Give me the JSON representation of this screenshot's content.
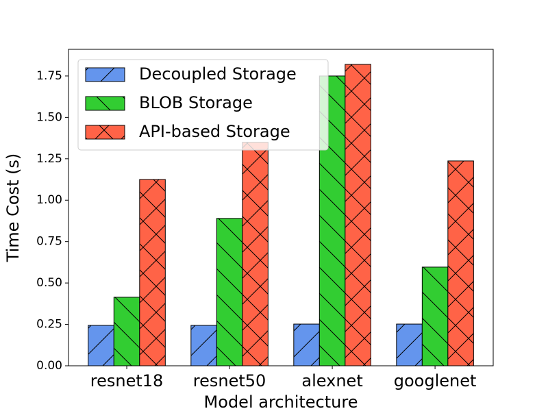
{
  "chart_data": {
    "type": "bar",
    "xlabel": "Model architecture",
    "ylabel": "Time Cost (s)",
    "categories": [
      "resnet18",
      "resnet50",
      "alexnet",
      "googlenet"
    ],
    "series": [
      {
        "name": "Decoupled Storage",
        "color": "#6495ED",
        "hatch": "/",
        "values": [
          0.244,
          0.244,
          0.252,
          0.252
        ]
      },
      {
        "name": "BLOB Storage",
        "color": "#32CD32",
        "hatch": "\\",
        "values": [
          0.414,
          0.89,
          1.75,
          0.596
        ]
      },
      {
        "name": "API-based Storage",
        "color": "#FF6347",
        "hatch": "x",
        "values": [
          1.125,
          1.35,
          1.82,
          1.237
        ]
      }
    ],
    "ylim": [
      0,
      1.911
    ],
    "yticks": [
      {
        "value": 0,
        "label": "0.00"
      },
      {
        "value": 0.25,
        "label": "0.25"
      },
      {
        "value": 0.5,
        "label": "0.50"
      },
      {
        "value": 0.75,
        "label": "0.75"
      },
      {
        "value": 1,
        "label": "1.00"
      },
      {
        "value": 1.25,
        "label": "1.25"
      },
      {
        "value": 1.5,
        "label": "1.50"
      },
      {
        "value": 1.75,
        "label": "1.75"
      }
    ],
    "legend": "upper left",
    "grid": false
  }
}
